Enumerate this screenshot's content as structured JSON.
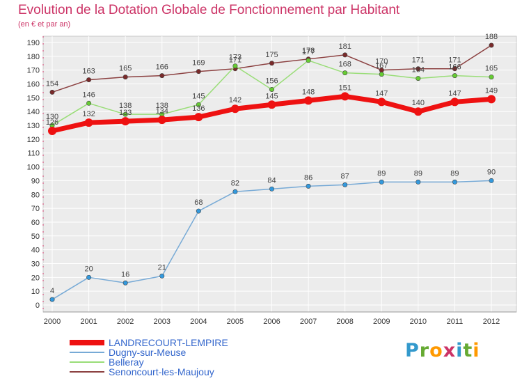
{
  "header": {
    "title": "Evolution de la Dotation Globale de Fonctionnement par Habitant",
    "subtitle": "(en € et par an)"
  },
  "logo": {
    "text": "Proxiti",
    "letters": [
      "P",
      "r",
      "o",
      "x",
      "i",
      "t",
      "i"
    ],
    "colors": [
      "#3399cc",
      "#66aa33",
      "#ff9900",
      "#cc3366",
      "#3399cc",
      "#66aa33",
      "#ff9900"
    ]
  },
  "chart_data": {
    "type": "line",
    "title": "Evolution de la Dotation Globale de Fonctionnement par Habitant",
    "subtitle": "(en € et par an)",
    "xlabel": "",
    "ylabel": "",
    "x": [
      2000,
      2001,
      2002,
      2003,
      2004,
      2005,
      2006,
      2007,
      2008,
      2009,
      2010,
      2011,
      2012
    ],
    "ylim": [
      0,
      190
    ],
    "yticks": [
      0,
      10,
      20,
      30,
      40,
      50,
      60,
      70,
      80,
      90,
      100,
      110,
      120,
      130,
      140,
      150,
      160,
      170,
      180,
      190
    ],
    "grid": true,
    "legend_position": "bottom-left",
    "series": [
      {
        "name": "Senoncourt-les-Maujouy",
        "color": "#7a2a2a",
        "line_color": "#8b4040",
        "emphasis": false,
        "values": [
          154,
          163,
          165,
          166,
          169,
          171,
          175,
          178,
          181,
          170,
          171,
          171,
          188
        ],
        "labels": [
          "154",
          "163",
          "165",
          "166",
          "169",
          "171",
          "175",
          "178",
          "181",
          "170",
          "171",
          "171",
          "188"
        ]
      },
      {
        "name": "Belleray",
        "color": "#66cc33",
        "line_color": "#99dd77",
        "emphasis": false,
        "values": [
          130,
          146,
          138,
          138,
          145,
          173,
          156,
          177,
          168,
          167,
          164,
          166,
          165
        ],
        "labels": [
          "130",
          "146",
          "138",
          "138",
          "145",
          "173",
          "156",
          "177",
          "168",
          "167",
          "164",
          "166",
          "165"
        ]
      },
      {
        "name": "Dugny-sur-Meuse",
        "color": "#3399dd",
        "line_color": "#77aad6",
        "emphasis": false,
        "values": [
          4,
          20,
          16,
          21,
          68,
          82,
          84,
          86,
          87,
          89,
          89,
          89,
          90
        ],
        "labels": [
          "4",
          "20",
          "16",
          "21",
          "68",
          "82",
          "84",
          "86",
          "87",
          "89",
          "89",
          "89",
          "90"
        ]
      },
      {
        "name": "LANDRECOURT-LEMPIRE",
        "color": "#ee1111",
        "line_color": "#ee1111",
        "emphasis": true,
        "values": [
          126,
          132,
          133,
          134,
          136,
          142,
          145,
          148,
          151,
          147,
          140,
          147,
          149
        ],
        "labels": [
          "126",
          "132",
          "133",
          "134",
          "136",
          "142",
          "145",
          "148",
          "151",
          "147",
          "140",
          "147",
          "149"
        ]
      }
    ]
  },
  "legend": {
    "items": [
      {
        "label": "LANDRECOURT-LEMPIRE",
        "color": "#ee1111",
        "thickness": 8
      },
      {
        "label": "Dugny-sur-Meuse",
        "color": "#77aad6",
        "thickness": 2
      },
      {
        "label": "Belleray",
        "color": "#99dd77",
        "thickness": 2
      },
      {
        "label": "Senoncourt-les-Maujouy",
        "color": "#8b4040",
        "thickness": 2
      }
    ]
  }
}
